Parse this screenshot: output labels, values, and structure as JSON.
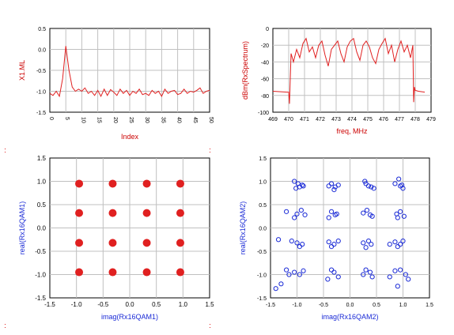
{
  "chart_data": [
    {
      "type": "line",
      "ylabel": "X1.ML",
      "xlabel": "Index",
      "ylim": [
        -1.5,
        0.5
      ],
      "xlim": [
        0,
        50
      ],
      "yticks": [
        "0.5",
        "0.0",
        "-0.5",
        "-1.0",
        "-1.5"
      ],
      "xticks": [
        "0",
        "5",
        "10",
        "15",
        "20",
        "25",
        "30",
        "35",
        "40",
        "45",
        "50"
      ],
      "series": [
        {
          "color": "#e02020",
          "x": [
            0,
            1,
            2,
            3,
            4,
            5,
            6,
            7,
            8,
            9,
            10,
            11,
            12,
            13,
            14,
            15,
            16,
            17,
            18,
            19,
            20,
            21,
            22,
            23,
            24,
            25,
            26,
            27,
            28,
            29,
            30,
            31,
            32,
            33,
            34,
            35,
            36,
            37,
            38,
            39,
            40,
            41,
            42,
            43,
            44,
            45,
            46,
            47,
            48,
            49,
            50
          ],
          "values": [
            -1.05,
            -1.1,
            -1.0,
            -1.12,
            -0.7,
            0.08,
            -0.5,
            -0.9,
            -1.0,
            -0.95,
            -1.0,
            -0.92,
            -1.05,
            -1.0,
            -1.1,
            -0.98,
            -1.12,
            -0.95,
            -1.1,
            -0.96,
            -1.02,
            -1.1,
            -0.95,
            -1.05,
            -0.98,
            -1.1,
            -1.0,
            -1.05,
            -0.95,
            -1.08,
            -1.05,
            -1.1,
            -0.98,
            -1.05,
            -1.0,
            -1.12,
            -0.95,
            -1.05,
            -1.0,
            -0.98,
            -1.08,
            -1.05,
            -0.95,
            -1.05,
            -1.0,
            -1.02,
            -0.98,
            -0.92,
            -1.05,
            -1.0,
            -0.98
          ]
        }
      ]
    },
    {
      "type": "line",
      "ylabel": "dBm(RxSpectrum)",
      "xlabel": "freq, MHz",
      "ylim": [
        -100,
        0
      ],
      "xlim": [
        469,
        479
      ],
      "yticks": [
        "0",
        "-20",
        "-40",
        "-60",
        "-80",
        "-100"
      ],
      "xticks": [
        "469",
        "470",
        "471",
        "472",
        "473",
        "474",
        "475",
        "476",
        "477",
        "478",
        "479"
      ],
      "series": [
        {
          "color": "#e02020",
          "x": [
            469.0,
            469.9,
            470.0,
            470.05,
            470.1,
            470.15,
            470.3,
            470.5,
            470.7,
            470.9,
            471.1,
            471.3,
            471.5,
            471.7,
            471.9,
            472.1,
            472.3,
            472.5,
            472.7,
            472.9,
            473.1,
            473.3,
            473.5,
            473.7,
            473.9,
            474.1,
            474.3,
            474.5,
            474.7,
            474.9,
            475.1,
            475.3,
            475.5,
            475.7,
            475.9,
            476.1,
            476.3,
            476.5,
            476.7,
            476.9,
            477.1,
            477.3,
            477.5,
            477.7,
            477.85,
            477.9,
            477.95,
            478.0,
            478.2,
            478.6
          ],
          "values": [
            -75,
            -76,
            -76,
            -90,
            -60,
            -30,
            -40,
            -25,
            -35,
            -18,
            -12,
            -28,
            -22,
            -35,
            -20,
            -15,
            -32,
            -45,
            -25,
            -20,
            -15,
            -30,
            -40,
            -22,
            -15,
            -12,
            -28,
            -38,
            -20,
            -15,
            -22,
            -35,
            -42,
            -25,
            -18,
            -12,
            -30,
            -20,
            -40,
            -25,
            -15,
            -28,
            -20,
            -35,
            -20,
            -88,
            -70,
            -74,
            -75,
            -76
          ]
        }
      ]
    },
    {
      "type": "scatter",
      "ylabel": "real(Rx16QAM1)",
      "xlabel": "imag(Rx16QAM1)",
      "xlim": [
        -1.5,
        1.5
      ],
      "ylim": [
        -1.5,
        1.5
      ],
      "xticks": [
        "-1.5",
        "-1.0",
        "-0.5",
        "0.0",
        "0.5",
        "1.0",
        "1.5"
      ],
      "yticks": [
        "1.5",
        "1.0",
        "0.5",
        "0.0",
        "-0.5",
        "-1.0",
        "-1.5"
      ],
      "series": [
        {
          "color": "#e02020",
          "x": [
            -0.95,
            -0.32,
            0.32,
            0.95,
            -0.95,
            -0.32,
            0.32,
            0.95,
            -0.95,
            -0.32,
            0.32,
            0.95,
            -0.95,
            -0.32,
            0.32,
            0.95
          ],
          "values": [
            0.95,
            0.95,
            0.95,
            0.95,
            0.32,
            0.32,
            0.32,
            0.32,
            -0.32,
            -0.32,
            -0.32,
            -0.32,
            -0.95,
            -0.95,
            -0.95,
            -0.95
          ]
        }
      ]
    },
    {
      "type": "scatter",
      "ylabel": "real(Rx16QAM2)",
      "xlabel": "imag(Rx16QAM2)",
      "xlim": [
        -1.5,
        1.5
      ],
      "ylim": [
        -1.5,
        1.5
      ],
      "xticks": [
        "-1.5",
        "-1.0",
        "-0.5",
        "0.0",
        "0.5",
        "1.0",
        "1.5"
      ],
      "yticks": [
        "1.5",
        "1.0",
        "0.5",
        "0.0",
        "-0.5",
        "-1.0",
        "-1.5"
      ],
      "series": [
        {
          "color": "#1a2ad6",
          "x": [
            -1.05,
            -0.98,
            -0.9,
            -0.95,
            -1.02,
            -0.88,
            -0.4,
            -0.35,
            -0.28,
            -0.22,
            -0.3,
            0.28,
            0.35,
            0.4,
            0.3,
            0.45,
            0.85,
            0.95,
            1.0,
            0.92,
            0.98,
            -1.2,
            -1.0,
            -0.92,
            -0.85,
            -1.05,
            -0.35,
            -0.28,
            -0.4,
            -0.25,
            0.25,
            0.38,
            0.32,
            0.42,
            0.88,
            0.95,
            1.02,
            0.9,
            -1.1,
            -1.0,
            -0.9,
            -1.35,
            -0.95,
            -0.4,
            -0.3,
            -0.22,
            -0.35,
            0.25,
            0.35,
            0.4,
            0.3,
            0.85,
            0.95,
            1.0,
            0.9,
            0.75,
            -1.2,
            -1.05,
            -0.95,
            -0.88,
            -1.3,
            -0.35,
            -0.3,
            -0.22,
            -0.42,
            0.3,
            0.38,
            0.25,
            0.42,
            0.85,
            0.95,
            1.05,
            1.1,
            0.9,
            0.75,
            -1.15,
            -1.4
          ],
          "values": [
            1.0,
            0.95,
            0.92,
            0.88,
            0.85,
            0.9,
            0.9,
            0.95,
            0.88,
            0.92,
            0.82,
            1.0,
            0.9,
            0.88,
            0.95,
            0.85,
            0.95,
            0.9,
            0.85,
            1.05,
            0.92,
            0.35,
            0.3,
            0.38,
            0.28,
            0.22,
            0.35,
            0.28,
            0.22,
            0.3,
            0.32,
            0.28,
            0.38,
            0.25,
            0.3,
            0.35,
            0.25,
            0.22,
            -0.28,
            -0.32,
            -0.35,
            -0.25,
            -0.4,
            -0.3,
            -0.35,
            -0.28,
            -0.4,
            -0.32,
            -0.28,
            -0.35,
            -0.42,
            -0.3,
            -0.35,
            -0.28,
            -0.4,
            -0.35,
            -0.9,
            -0.95,
            -1.0,
            -0.92,
            -1.2,
            -0.9,
            -0.95,
            -1.05,
            -1.1,
            -0.9,
            -0.95,
            -1.0,
            -1.05,
            -0.92,
            -0.9,
            -1.0,
            -1.1,
            -1.25,
            -1.05,
            -1.0,
            -1.3
          ]
        }
      ]
    }
  ]
}
